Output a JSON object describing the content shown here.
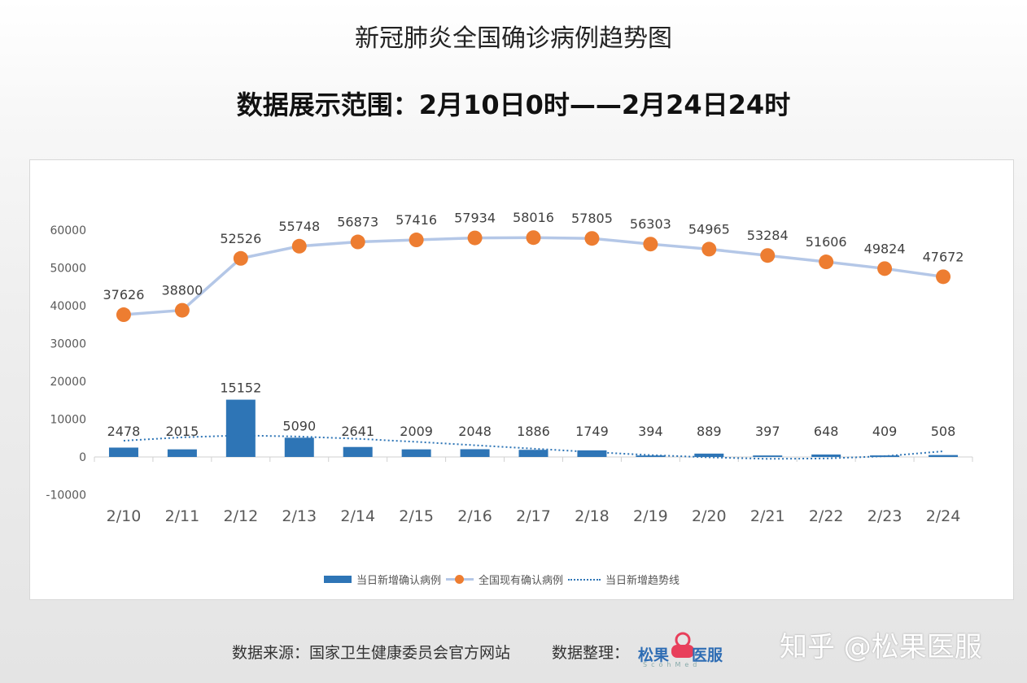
{
  "title": "新冠肺炎全国确诊病例趋势图",
  "subtitle": "数据展示范围：2月10日0时——2月24日24时",
  "chart_data": {
    "type": "bar",
    "categories": [
      "2/10",
      "2/11",
      "2/12",
      "2/13",
      "2/14",
      "2/15",
      "2/16",
      "2/17",
      "2/18",
      "2/19",
      "2/20",
      "2/21",
      "2/22",
      "2/23",
      "2/24"
    ],
    "ylim": [
      -10000,
      60000
    ],
    "yticks": [
      "-10000",
      "0",
      "10000",
      "20000",
      "30000",
      "40000",
      "50000",
      "60000"
    ],
    "ytick_values": [
      -10000,
      0,
      10000,
      20000,
      30000,
      40000,
      50000,
      60000
    ],
    "grid": false,
    "legend_position": "bottom",
    "series": [
      {
        "name": "当日新增确认病例",
        "type": "bar",
        "color": "#2e75b6",
        "values": [
          2478,
          2015,
          15152,
          5090,
          2641,
          2009,
          2048,
          1886,
          1749,
          394,
          889,
          397,
          648,
          409,
          508
        ]
      },
      {
        "name": "全国现有确认病例",
        "type": "line",
        "color": "#ed7d31",
        "line_color": "#b4c7e7",
        "values": [
          37626,
          38800,
          52526,
          55748,
          56873,
          57416,
          57934,
          58016,
          57805,
          56303,
          54965,
          53284,
          51606,
          49824,
          47672
        ]
      },
      {
        "name": "当日新增趋势线",
        "type": "trendline",
        "color": "#2e75b6",
        "values": [
          4300,
          5200,
          5700,
          5400,
          4800,
          4000,
          3100,
          2200,
          1300,
          500,
          -100,
          -500,
          -400,
          200,
          1500
        ]
      }
    ]
  },
  "footer": {
    "source": "数据来源：国家卫生健康委员会官方网站",
    "organizer": "数据整理：",
    "logo_text_left": "松果",
    "logo_text_right": "医服",
    "logo_sub": "ScohMed"
  },
  "watermark": "知乎 @松果医服"
}
